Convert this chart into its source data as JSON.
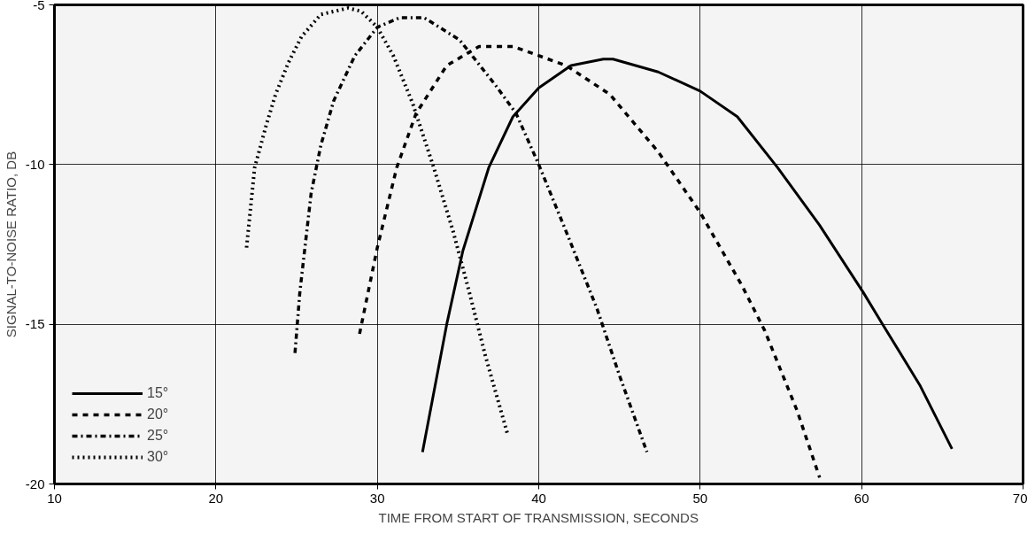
{
  "chart_data": {
    "type": "line",
    "xlabel": "TIME FROM START OF TRANSMISSION, SECONDS",
    "ylabel": "SIGNAL-TO-NOISE RATIO, DB",
    "xlim": [
      10,
      70
    ],
    "xticks": [
      10,
      20,
      30,
      40,
      50,
      60,
      70
    ],
    "ylim": [
      -20,
      -5
    ],
    "yticks": [
      -20,
      -15,
      -10,
      -5
    ],
    "grid": true,
    "legend": "bottom left",
    "marker": "none",
    "series": [
      {
        "name": "15°",
        "color": "#000000",
        "line_style": "solid",
        "x": [
          32.8,
          34.3,
          35.3,
          36.9,
          38.4,
          40,
          42,
          44,
          44.6,
          47.4,
          50,
          52.3,
          54.8,
          57.4,
          60.1,
          61.3,
          63.6,
          65.6
        ],
        "values": [
          -19.0,
          -15.0,
          -12.7,
          -10.1,
          -8.5,
          -7.6,
          -6.9,
          -6.7,
          -6.7,
          -7.1,
          -7.7,
          -8.5,
          -10.1,
          -11.9,
          -14.0,
          -15.0,
          -16.9,
          -18.9
        ]
      },
      {
        "name": "20°",
        "color": "#000000",
        "line_style": "dashed",
        "x": [
          28.9,
          30,
          31.2,
          32.4,
          34.3,
          36.3,
          38.4,
          41.7,
          44.4,
          47.4,
          50,
          52.6,
          54,
          56,
          57.4
        ],
        "values": [
          -15.3,
          -12.6,
          -10.1,
          -8.4,
          -6.9,
          -6.3,
          -6.3,
          -6.9,
          -7.8,
          -9.6,
          -11.5,
          -13.8,
          -15.2,
          -17.7,
          -19.8
        ]
      },
      {
        "name": "25°",
        "color": "#000000",
        "line_style": "dashdot",
        "x": [
          24.9,
          25.2,
          25.9,
          26.5,
          27.3,
          28.6,
          30,
          31.4,
          32.9,
          35.1,
          37.3,
          38.6,
          40,
          41.7,
          43.6,
          45,
          46.7
        ],
        "values": [
          -15.9,
          -14.0,
          -10.9,
          -9.4,
          -8.0,
          -6.6,
          -5.7,
          -5.4,
          -5.4,
          -6.1,
          -7.5,
          -8.4,
          -10.0,
          -12.1,
          -14.5,
          -16.6,
          -19.0
        ]
      },
      {
        "name": "30°",
        "color": "#000000",
        "line_style": "dotted",
        "x": [
          21.9,
          22.4,
          23.1,
          23.7,
          24.5,
          25.3,
          26.5,
          28.2,
          29,
          30,
          31,
          32.2,
          33.5,
          34.7,
          35.7,
          36.7,
          38.1
        ],
        "values": [
          -12.6,
          -10.1,
          -8.8,
          -7.8,
          -6.8,
          -6.0,
          -5.3,
          -5.1,
          -5.2,
          -5.7,
          -6.6,
          -8.1,
          -10.1,
          -12.1,
          -14.0,
          -16.0,
          -18.5
        ]
      }
    ]
  }
}
